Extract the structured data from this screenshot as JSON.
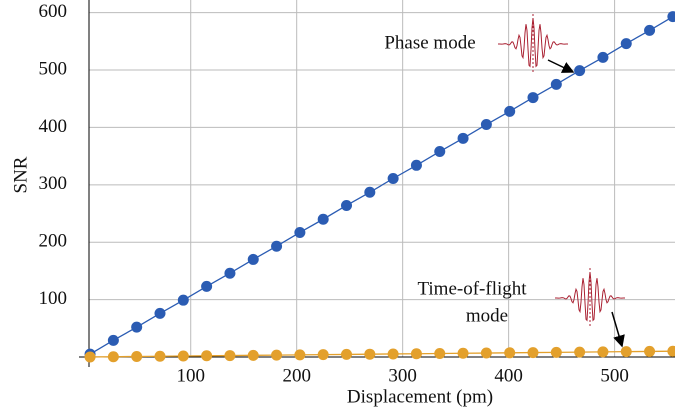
{
  "chart_data": {
    "type": "line",
    "x_label": "Displacement (pm)",
    "y_label": "SNR",
    "x": [
      5,
      27,
      49,
      71,
      93,
      115,
      137,
      159,
      181,
      203,
      225,
      247,
      269,
      291,
      313,
      335,
      357,
      379,
      401,
      423,
      445,
      467,
      489,
      511,
      533,
      555
    ],
    "series": [
      {
        "name": "Phase mode",
        "color": "#2b5cb3",
        "values": [
          5,
          29,
          52,
          76,
          99,
          123,
          146,
          170,
          193,
          217,
          240,
          264,
          287,
          311,
          334,
          358,
          381,
          405,
          428,
          452,
          475,
          499,
          522,
          546,
          569,
          593
        ]
      },
      {
        "name": "Time-of-flight mode",
        "color": "#e3a02c",
        "values": [
          0.1,
          0.5,
          0.9,
          1.3,
          1.7,
          2.1,
          2.5,
          2.9,
          3.3,
          3.7,
          4.1,
          4.5,
          4.9,
          5.3,
          5.7,
          6.1,
          6.5,
          6.9,
          7.3,
          7.7,
          8.1,
          8.5,
          8.9,
          9.3,
          9.7,
          10.1
        ]
      }
    ],
    "annotations": [
      {
        "text": [
          "Phase mode"
        ]
      },
      {
        "text": [
          "Time-of-flight",
          "mode"
        ]
      }
    ],
    "xlim": [
      4,
      557
    ],
    "ylim": [
      0,
      622
    ],
    "xticks": [
      100,
      200,
      300,
      400,
      500
    ],
    "yticks": [
      100,
      200,
      300,
      400,
      500,
      600
    ],
    "grid": true
  }
}
